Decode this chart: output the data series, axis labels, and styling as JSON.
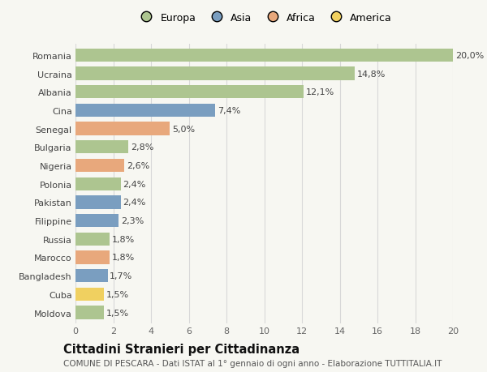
{
  "countries": [
    "Romania",
    "Ucraina",
    "Albania",
    "Cina",
    "Senegal",
    "Bulgaria",
    "Nigeria",
    "Polonia",
    "Pakistan",
    "Filippine",
    "Russia",
    "Marocco",
    "Bangladesh",
    "Cuba",
    "Moldova"
  ],
  "values": [
    20.0,
    14.8,
    12.1,
    7.4,
    5.0,
    2.8,
    2.6,
    2.4,
    2.4,
    2.3,
    1.8,
    1.8,
    1.7,
    1.5,
    1.5
  ],
  "labels": [
    "20,0%",
    "14,8%",
    "12,1%",
    "7,4%",
    "5,0%",
    "2,8%",
    "2,6%",
    "2,4%",
    "2,4%",
    "2,3%",
    "1,8%",
    "1,8%",
    "1,7%",
    "1,5%",
    "1,5%"
  ],
  "categories": [
    "Europa",
    "Europa",
    "Europa",
    "Asia",
    "Africa",
    "Europa",
    "Africa",
    "Europa",
    "Asia",
    "Asia",
    "Europa",
    "Africa",
    "Asia",
    "America",
    "Europa"
  ],
  "colors": {
    "Europa": "#adc590",
    "Asia": "#7a9ec0",
    "Africa": "#e8a87c",
    "America": "#f0d060"
  },
  "legend_order": [
    "Europa",
    "Asia",
    "Africa",
    "America"
  ],
  "bg_color": "#f7f7f2",
  "title": "Cittadini Stranieri per Cittadinanza",
  "subtitle": "COMUNE DI PESCARA - Dati ISTAT al 1° gennaio di ogni anno - Elaborazione TUTTITALIA.IT",
  "xlim": [
    0,
    20
  ],
  "xticks": [
    0,
    2,
    4,
    6,
    8,
    10,
    12,
    14,
    16,
    18,
    20
  ],
  "grid_color": "#d8d8d8",
  "bar_height": 0.72,
  "label_fontsize": 8,
  "tick_fontsize": 8,
  "title_fontsize": 10.5,
  "subtitle_fontsize": 7.5,
  "legend_fontsize": 9
}
